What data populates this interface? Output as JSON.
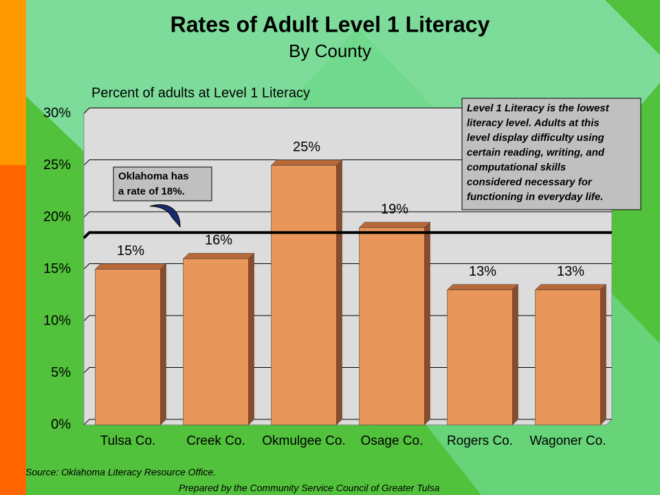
{
  "chart_data": {
    "type": "bar3d",
    "title": "Rates of Adult Level 1 Literacy",
    "subtitle": "By County",
    "y_axis_label": "Percent of adults at Level 1 Literacy",
    "categories": [
      "Tulsa Co.",
      "Creek Co.",
      "Okmulgee Co.",
      "Osage Co.",
      "Rogers Co.",
      "Wagoner Co."
    ],
    "values": [
      15,
      16,
      25,
      19,
      13,
      13
    ],
    "value_labels": [
      "15%",
      "16%",
      "25%",
      "19%",
      "13%",
      "13%"
    ],
    "color": "#e8965a",
    "ylim": [
      0,
      30
    ],
    "yticks": [
      {
        "value": 0,
        "label": "0%"
      },
      {
        "value": 5,
        "label": "5%"
      },
      {
        "value": 10,
        "label": "10%"
      },
      {
        "value": 15,
        "label": "15%"
      },
      {
        "value": 20,
        "label": "20%"
      },
      {
        "value": 25,
        "label": "25%"
      },
      {
        "value": 30,
        "label": "30%"
      }
    ],
    "grid": true,
    "reference_line": 18,
    "annotation": [
      "Oklahoma has",
      "a rate of 18%."
    ],
    "info_box": [
      "Level 1 Literacy is the lowest",
      "literacy level.  Adults at this",
      "level display difficulty using",
      "certain reading, writing, and",
      "computational skills",
      "considered necessary for",
      "functioning in everyday life."
    ],
    "source": "Source:  Oklahoma Literacy Resource Office.",
    "prepared_by": "Prepared by the Community Service Council of Greater Tulsa"
  }
}
